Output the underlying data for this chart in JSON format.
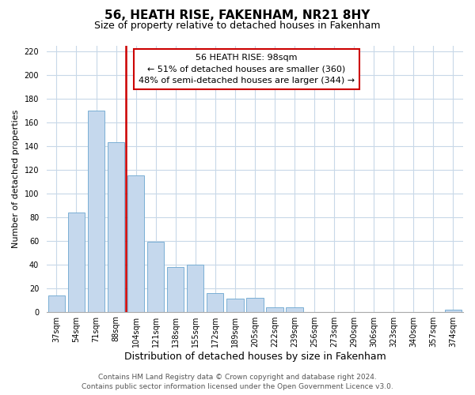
{
  "title": "56, HEATH RISE, FAKENHAM, NR21 8HY",
  "subtitle": "Size of property relative to detached houses in Fakenham",
  "xlabel": "Distribution of detached houses by size in Fakenham",
  "ylabel": "Number of detached properties",
  "bar_color": "#c5d8ed",
  "bar_edge_color": "#7aafd4",
  "categories": [
    "37sqm",
    "54sqm",
    "71sqm",
    "88sqm",
    "104sqm",
    "121sqm",
    "138sqm",
    "155sqm",
    "172sqm",
    "189sqm",
    "205sqm",
    "222sqm",
    "239sqm",
    "256sqm",
    "273sqm",
    "290sqm",
    "306sqm",
    "323sqm",
    "340sqm",
    "357sqm",
    "374sqm"
  ],
  "values": [
    14,
    84,
    170,
    143,
    115,
    59,
    38,
    40,
    16,
    11,
    12,
    4,
    4,
    0,
    0,
    0,
    0,
    0,
    0,
    0,
    2
  ],
  "vline_x_idx": 3.5,
  "vline_color": "#cc0000",
  "annotation_line1": "56 HEATH RISE: 98sqm",
  "annotation_line2": "← 51% of detached houses are smaller (360)",
  "annotation_line3": "48% of semi-detached houses are larger (344) →",
  "ylim": [
    0,
    225
  ],
  "yticks": [
    0,
    20,
    40,
    60,
    80,
    100,
    120,
    140,
    160,
    180,
    200,
    220
  ],
  "footer1": "Contains HM Land Registry data © Crown copyright and database right 2024.",
  "footer2": "Contains public sector information licensed under the Open Government Licence v3.0.",
  "background_color": "#ffffff",
  "grid_color": "#c8d8e8",
  "title_fontsize": 11,
  "subtitle_fontsize": 9,
  "xlabel_fontsize": 9,
  "ylabel_fontsize": 8,
  "tick_fontsize": 7,
  "annotation_fontsize": 8,
  "footer_fontsize": 6.5
}
